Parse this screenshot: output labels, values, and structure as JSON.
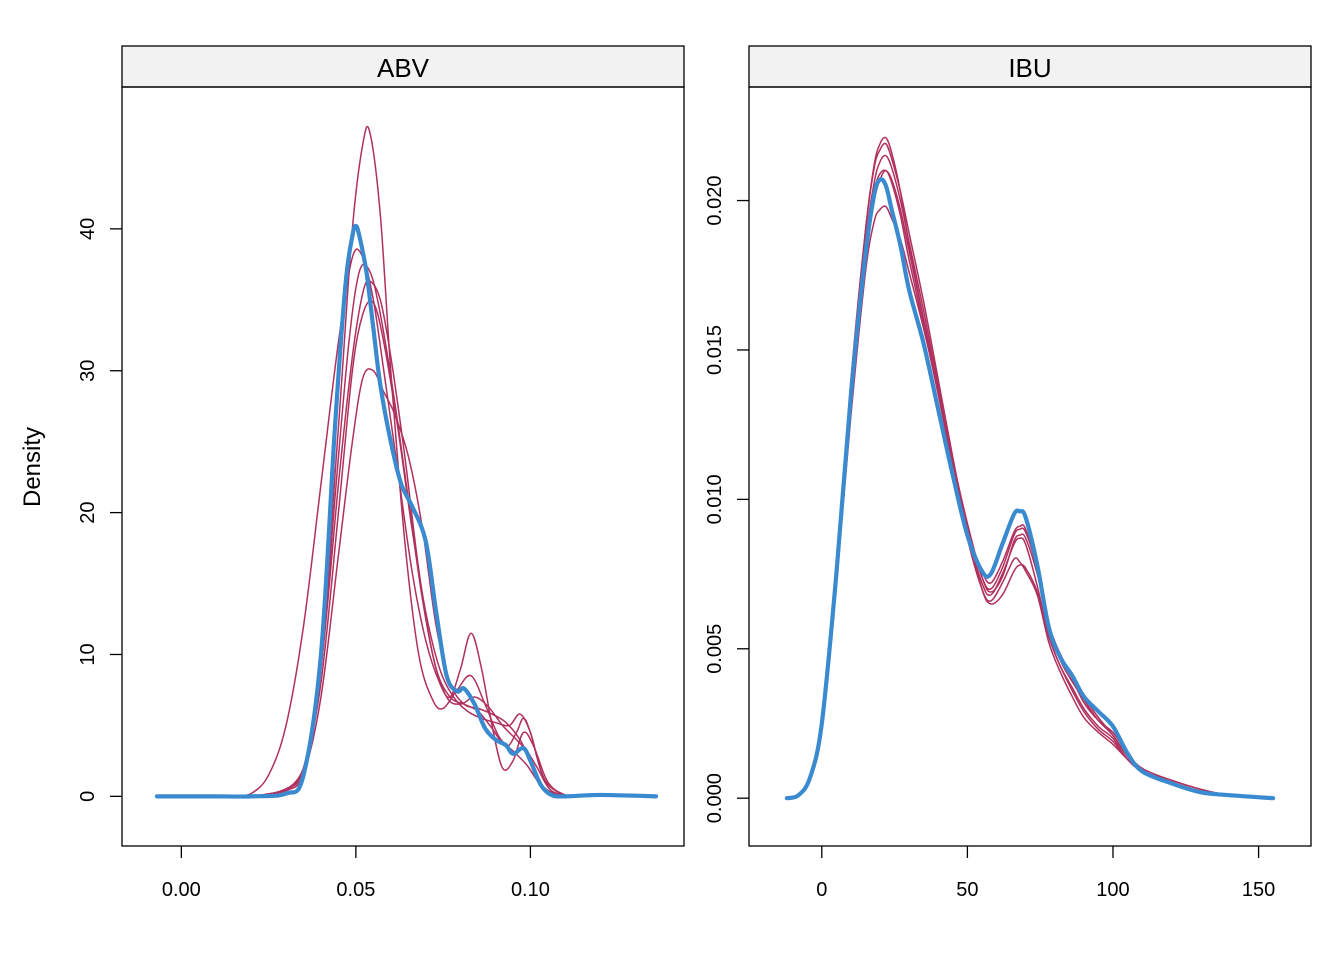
{
  "chart_data": {
    "type": "line",
    "ylabel": "Density",
    "colors": {
      "observed": "#3A8AD0",
      "replicate": "#B0305E"
    },
    "panels": [
      {
        "title": "ABV",
        "xlim": [
          -0.017,
          0.144
        ],
        "ylim": [
          -3.5,
          50
        ],
        "xticks": [
          0.0,
          0.05,
          0.1
        ],
        "xtick_labels": [
          "0.00",
          "0.05",
          "0.10"
        ],
        "yticks": [
          0,
          10,
          20,
          30,
          40
        ],
        "ytick_labels": [
          "0",
          "10",
          "20",
          "30",
          "40"
        ],
        "observed": {
          "x": [
            -0.007,
            0.0,
            0.01,
            0.02,
            0.03,
            0.035,
            0.04,
            0.044,
            0.047,
            0.049,
            0.05,
            0.051,
            0.053,
            0.055,
            0.057,
            0.06,
            0.063,
            0.066,
            0.07,
            0.073,
            0.076,
            0.079,
            0.081,
            0.084,
            0.087,
            0.09,
            0.093,
            0.095,
            0.098,
            0.1,
            0.103,
            0.106,
            0.11,
            0.12,
            0.136
          ],
          "y": [
            0,
            0,
            0,
            0,
            0.2,
            1.5,
            10,
            26,
            36,
            39.5,
            40.2,
            39.5,
            37,
            33,
            29,
            25,
            22,
            20.5,
            18,
            13,
            8.5,
            7.4,
            7.6,
            6.5,
            4.8,
            4.0,
            3.6,
            3.0,
            3.4,
            2.5,
            0.8,
            0.1,
            0,
            0.1,
            0
          ]
        },
        "replicates": [
          {
            "x": [
              0.015,
              0.025,
              0.035,
              0.04,
              0.045,
              0.049,
              0.052,
              0.054,
              0.057,
              0.06,
              0.064,
              0.068,
              0.072,
              0.075,
              0.079,
              0.083,
              0.087,
              0.091,
              0.095,
              0.099,
              0.103,
              0.108,
              0.115
            ],
            "y": [
              0,
              0.1,
              2,
              10,
              26,
              40,
              46,
              46.8,
              41,
              30,
              18,
              10,
              6.8,
              6.2,
              7.5,
              8.5,
              6.5,
              4.2,
              3.2,
              2.2,
              0.8,
              0.1,
              0
            ]
          },
          {
            "x": [
              0.015,
              0.02,
              0.025,
              0.03,
              0.035,
              0.04,
              0.045,
              0.049,
              0.052,
              0.055,
              0.058,
              0.062,
              0.066,
              0.07,
              0.074,
              0.077,
              0.08,
              0.083,
              0.086,
              0.089,
              0.092,
              0.095,
              0.098,
              0.101,
              0.105,
              0.11,
              0.115
            ],
            "y": [
              0,
              0.2,
              1.5,
              5,
              12,
              22,
              32,
              38,
              38,
              35,
              30,
              23,
              16,
              11,
              8,
              7,
              9,
              11.5,
              9,
              5,
              2,
              2.5,
              4.5,
              3.5,
              1,
              0.1,
              0
            ]
          },
          {
            "x": [
              0.02,
              0.03,
              0.035,
              0.04,
              0.045,
              0.049,
              0.052,
              0.054,
              0.057,
              0.06,
              0.064,
              0.068,
              0.072,
              0.076,
              0.08,
              0.084,
              0.088,
              0.092,
              0.096,
              0.099,
              0.102,
              0.106,
              0.112
            ],
            "y": [
              0,
              0.5,
              2,
              9,
              22,
              31,
              35.5,
              36.3,
              35,
              31,
              24,
              16,
              10,
              7,
              6.5,
              7,
              6.3,
              5,
              4,
              3.2,
              2,
              0.4,
              0
            ]
          },
          {
            "x": [
              0.02,
              0.03,
              0.035,
              0.04,
              0.045,
              0.049,
              0.052,
              0.055,
              0.058,
              0.061,
              0.065,
              0.069,
              0.073,
              0.077,
              0.081,
              0.085,
              0.089,
              0.093,
              0.097,
              0.1,
              0.104,
              0.11
            ],
            "y": [
              0,
              0.4,
              1.6,
              7,
              17,
              25,
              29.5,
              30,
              28.5,
              27,
              24,
              19,
              12,
              8,
              6.5,
              6.2,
              5.8,
              5.2,
              4,
              2.5,
              0.6,
              0
            ]
          },
          {
            "x": [
              0.02,
              0.03,
              0.035,
              0.04,
              0.045,
              0.049,
              0.052,
              0.055,
              0.058,
              0.062,
              0.066,
              0.07,
              0.074,
              0.078,
              0.082,
              0.086,
              0.09,
              0.094,
              0.097,
              0.1,
              0.104,
              0.11
            ],
            "y": [
              0,
              0.5,
              2,
              8,
              20,
              30,
              34,
              34.8,
              32,
              26,
              19,
              13,
              9,
              7,
              6,
              5.5,
              5.2,
              5,
              5.8,
              4.5,
              1.2,
              0
            ]
          },
          {
            "x": [
              0.02,
              0.03,
              0.035,
              0.04,
              0.044,
              0.048,
              0.051,
              0.054,
              0.057,
              0.061,
              0.065,
              0.069,
              0.073,
              0.077,
              0.081,
              0.085,
              0.089,
              0.093,
              0.096,
              0.098,
              0.1,
              0.104,
              0.11
            ],
            "y": [
              0,
              0.5,
              2,
              9,
              21,
              32,
              37,
              37,
              34,
              28,
              21,
              14,
              9,
              7,
              6.5,
              6,
              4.8,
              3.5,
              4.5,
              5.5,
              4.5,
              1.2,
              0
            ]
          }
        ]
      },
      {
        "title": "IBU",
        "xlim": [
          -25,
          168
        ],
        "ylim": [
          -0.0016,
          0.0238
        ],
        "xticks": [
          0,
          50,
          100,
          150
        ],
        "xtick_labels": [
          "0",
          "50",
          "100",
          "150"
        ],
        "yticks": [
          0.0,
          0.005,
          0.01,
          0.015,
          0.02
        ],
        "ytick_labels": [
          "0.000",
          "0.005",
          "0.010",
          "0.015",
          "0.020"
        ],
        "observed": {
          "x": [
            -12,
            -8,
            -4,
            0,
            5,
            10,
            15,
            18,
            20,
            22,
            24,
            27,
            30,
            35,
            40,
            45,
            50,
            55,
            58,
            62,
            66,
            68,
            70,
            74,
            78,
            82,
            86,
            90,
            95,
            100,
            105,
            110,
            120,
            130,
            140,
            155
          ],
          "y": [
            0,
            0.0001,
            0.0007,
            0.0025,
            0.0075,
            0.0135,
            0.0182,
            0.0202,
            0.0207,
            0.0205,
            0.0197,
            0.0185,
            0.017,
            0.0152,
            0.013,
            0.0108,
            0.0088,
            0.0076,
            0.0075,
            0.0085,
            0.0095,
            0.0096,
            0.0094,
            0.0078,
            0.0057,
            0.0047,
            0.0041,
            0.0034,
            0.0029,
            0.0024,
            0.0015,
            0.0009,
            0.0005,
            0.0002,
            0.0001,
            0
          ]
        },
        "replicates": [
          {
            "x": [
              -12,
              -8,
              -4,
              0,
              5,
              10,
              15,
              18,
              20,
              22,
              24,
              27,
              30,
              35,
              40,
              45,
              50,
              55,
              58,
              62,
              66,
              68,
              70,
              74,
              78,
              82,
              86,
              90,
              95,
              100,
              105,
              110,
              120,
              130,
              140,
              155
            ],
            "y": [
              0,
              0.0001,
              0.0007,
              0.0025,
              0.0076,
              0.0138,
              0.019,
              0.0212,
              0.0219,
              0.0221,
              0.0216,
              0.0203,
              0.0185,
              0.016,
              0.0136,
              0.0111,
              0.0087,
              0.007,
              0.0066,
              0.0072,
              0.008,
              0.0079,
              0.0076,
              0.0068,
              0.0052,
              0.0042,
              0.0034,
              0.0027,
              0.0022,
              0.0018,
              0.0013,
              0.0009,
              0.0005,
              0.0002,
              0.0001,
              0
            ]
          },
          {
            "x": [
              -12,
              -8,
              -4,
              0,
              5,
              10,
              15,
              18,
              20,
              22,
              24,
              27,
              30,
              35,
              40,
              45,
              50,
              55,
              58,
              62,
              66,
              68,
              70,
              74,
              78,
              82,
              86,
              90,
              95,
              100,
              105,
              110,
              120,
              130,
              140,
              155
            ],
            "y": [
              0,
              0.0001,
              0.0007,
              0.0025,
              0.0074,
              0.0132,
              0.018,
              0.02,
              0.0207,
              0.021,
              0.0206,
              0.0195,
              0.018,
              0.0158,
              0.0135,
              0.0111,
              0.009,
              0.0076,
              0.0072,
              0.0079,
              0.0089,
              0.0091,
              0.009,
              0.0076,
              0.0057,
              0.0046,
              0.0039,
              0.0033,
              0.0026,
              0.0021,
              0.0014,
              0.0009,
              0.0006,
              0.0003,
              0.0001,
              0
            ]
          },
          {
            "x": [
              -12,
              -8,
              -4,
              0,
              5,
              10,
              15,
              18,
              20,
              22,
              24,
              27,
              30,
              35,
              40,
              45,
              50,
              55,
              58,
              62,
              66,
              68,
              70,
              74,
              78,
              82,
              86,
              90,
              95,
              100,
              105,
              110,
              120,
              130,
              140,
              155
            ],
            "y": [
              0,
              0.0001,
              0.0007,
              0.0024,
              0.0072,
              0.0128,
              0.0176,
              0.0193,
              0.0197,
              0.0198,
              0.0194,
              0.0187,
              0.0176,
              0.0157,
              0.0136,
              0.0113,
              0.0092,
              0.0074,
              0.0069,
              0.0074,
              0.0086,
              0.0088,
              0.0087,
              0.0075,
              0.0058,
              0.0048,
              0.0041,
              0.0034,
              0.0027,
              0.0021,
              0.0014,
              0.0009,
              0.0005,
              0.0002,
              0.0001,
              0
            ]
          },
          {
            "x": [
              -12,
              -8,
              -4,
              0,
              5,
              10,
              15,
              18,
              20,
              22,
              24,
              27,
              30,
              35,
              40,
              45,
              50,
              55,
              58,
              62,
              66,
              68,
              70,
              74,
              78,
              82,
              86,
              90,
              95,
              100,
              105,
              110,
              120,
              130,
              140,
              155
            ],
            "y": [
              0,
              0.0001,
              0.0007,
              0.0025,
              0.0075,
              0.0135,
              0.0186,
              0.0206,
              0.0213,
              0.0215,
              0.0211,
              0.02,
              0.0186,
              0.0163,
              0.0138,
              0.0112,
              0.0089,
              0.0072,
              0.0068,
              0.0075,
              0.0085,
              0.0087,
              0.0085,
              0.0071,
              0.0054,
              0.0044,
              0.0037,
              0.003,
              0.0024,
              0.002,
              0.0013,
              0.0009,
              0.0005,
              0.0002,
              0.0001,
              0
            ]
          },
          {
            "x": [
              -12,
              -8,
              -4,
              0,
              5,
              10,
              15,
              18,
              20,
              22,
              24,
              27,
              30,
              35,
              40,
              45,
              50,
              55,
              58,
              62,
              66,
              68,
              70,
              74,
              78,
              82,
              86,
              90,
              95,
              100,
              105,
              110,
              120,
              130,
              140,
              155
            ],
            "y": [
              0,
              0.0001,
              0.0007,
              0.0026,
              0.0078,
              0.014,
              0.019,
              0.0211,
              0.0217,
              0.0219,
              0.0214,
              0.0203,
              0.0189,
              0.0166,
              0.014,
              0.0114,
              0.009,
              0.007,
              0.0065,
              0.0068,
              0.0076,
              0.0078,
              0.0077,
              0.0069,
              0.0054,
              0.0044,
              0.0036,
              0.0029,
              0.0023,
              0.0019,
              0.0013,
              0.0009,
              0.0005,
              0.0002,
              0.0001,
              0
            ]
          },
          {
            "x": [
              -12,
              -8,
              -4,
              0,
              5,
              10,
              15,
              18,
              20,
              22,
              24,
              27,
              30,
              35,
              40,
              45,
              50,
              55,
              58,
              62,
              66,
              68,
              70,
              74,
              78,
              82,
              86,
              90,
              95,
              100,
              105,
              110,
              120,
              130,
              140,
              155
            ],
            "y": [
              0,
              0.0001,
              0.0007,
              0.0025,
              0.0075,
              0.0134,
              0.0183,
              0.0203,
              0.0209,
              0.021,
              0.0207,
              0.0197,
              0.0183,
              0.016,
              0.0137,
              0.0112,
              0.009,
              0.0074,
              0.007,
              0.0077,
              0.0088,
              0.009,
              0.0089,
              0.0077,
              0.0058,
              0.0047,
              0.004,
              0.0032,
              0.0026,
              0.0022,
              0.0015,
              0.001,
              0.0006,
              0.0003,
              0.0001,
              0
            ]
          }
        ]
      }
    ]
  }
}
